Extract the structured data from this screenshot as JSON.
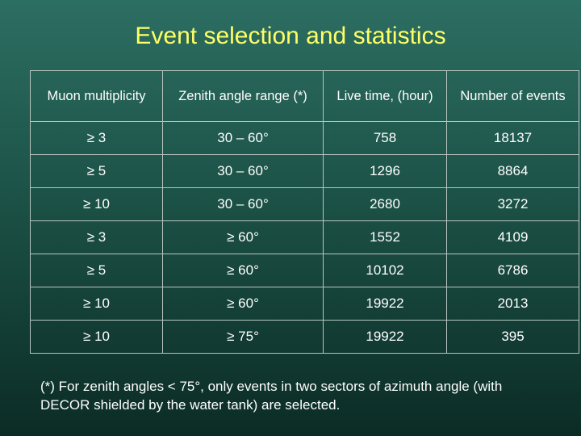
{
  "header": {
    "title": "Event selection and statistics"
  },
  "table": {
    "columns": [
      "Muon multiplicity",
      "Zenith angle range (*)",
      "Live time, (hour)",
      "Number of events"
    ],
    "rows": [
      [
        "≥ 3",
        "30 – 60°",
        "758",
        "18137"
      ],
      [
        "≥ 5",
        "30 – 60°",
        "1296",
        "8864"
      ],
      [
        "≥ 10",
        "30 – 60°",
        "2680",
        "3272"
      ],
      [
        "≥ 3",
        "≥ 60°",
        "1552",
        "4109"
      ],
      [
        "≥ 5",
        "≥ 60°",
        "10102",
        "6786"
      ],
      [
        "≥ 10",
        "≥ 60°",
        "19922",
        "2013"
      ],
      [
        "≥ 10",
        "≥ 75°",
        "19922",
        "395"
      ]
    ]
  },
  "footnote": "(*) For zenith angles < 75°, only events in two sectors of azimuth angle (with DECOR shielded by the water tank) are selected."
}
